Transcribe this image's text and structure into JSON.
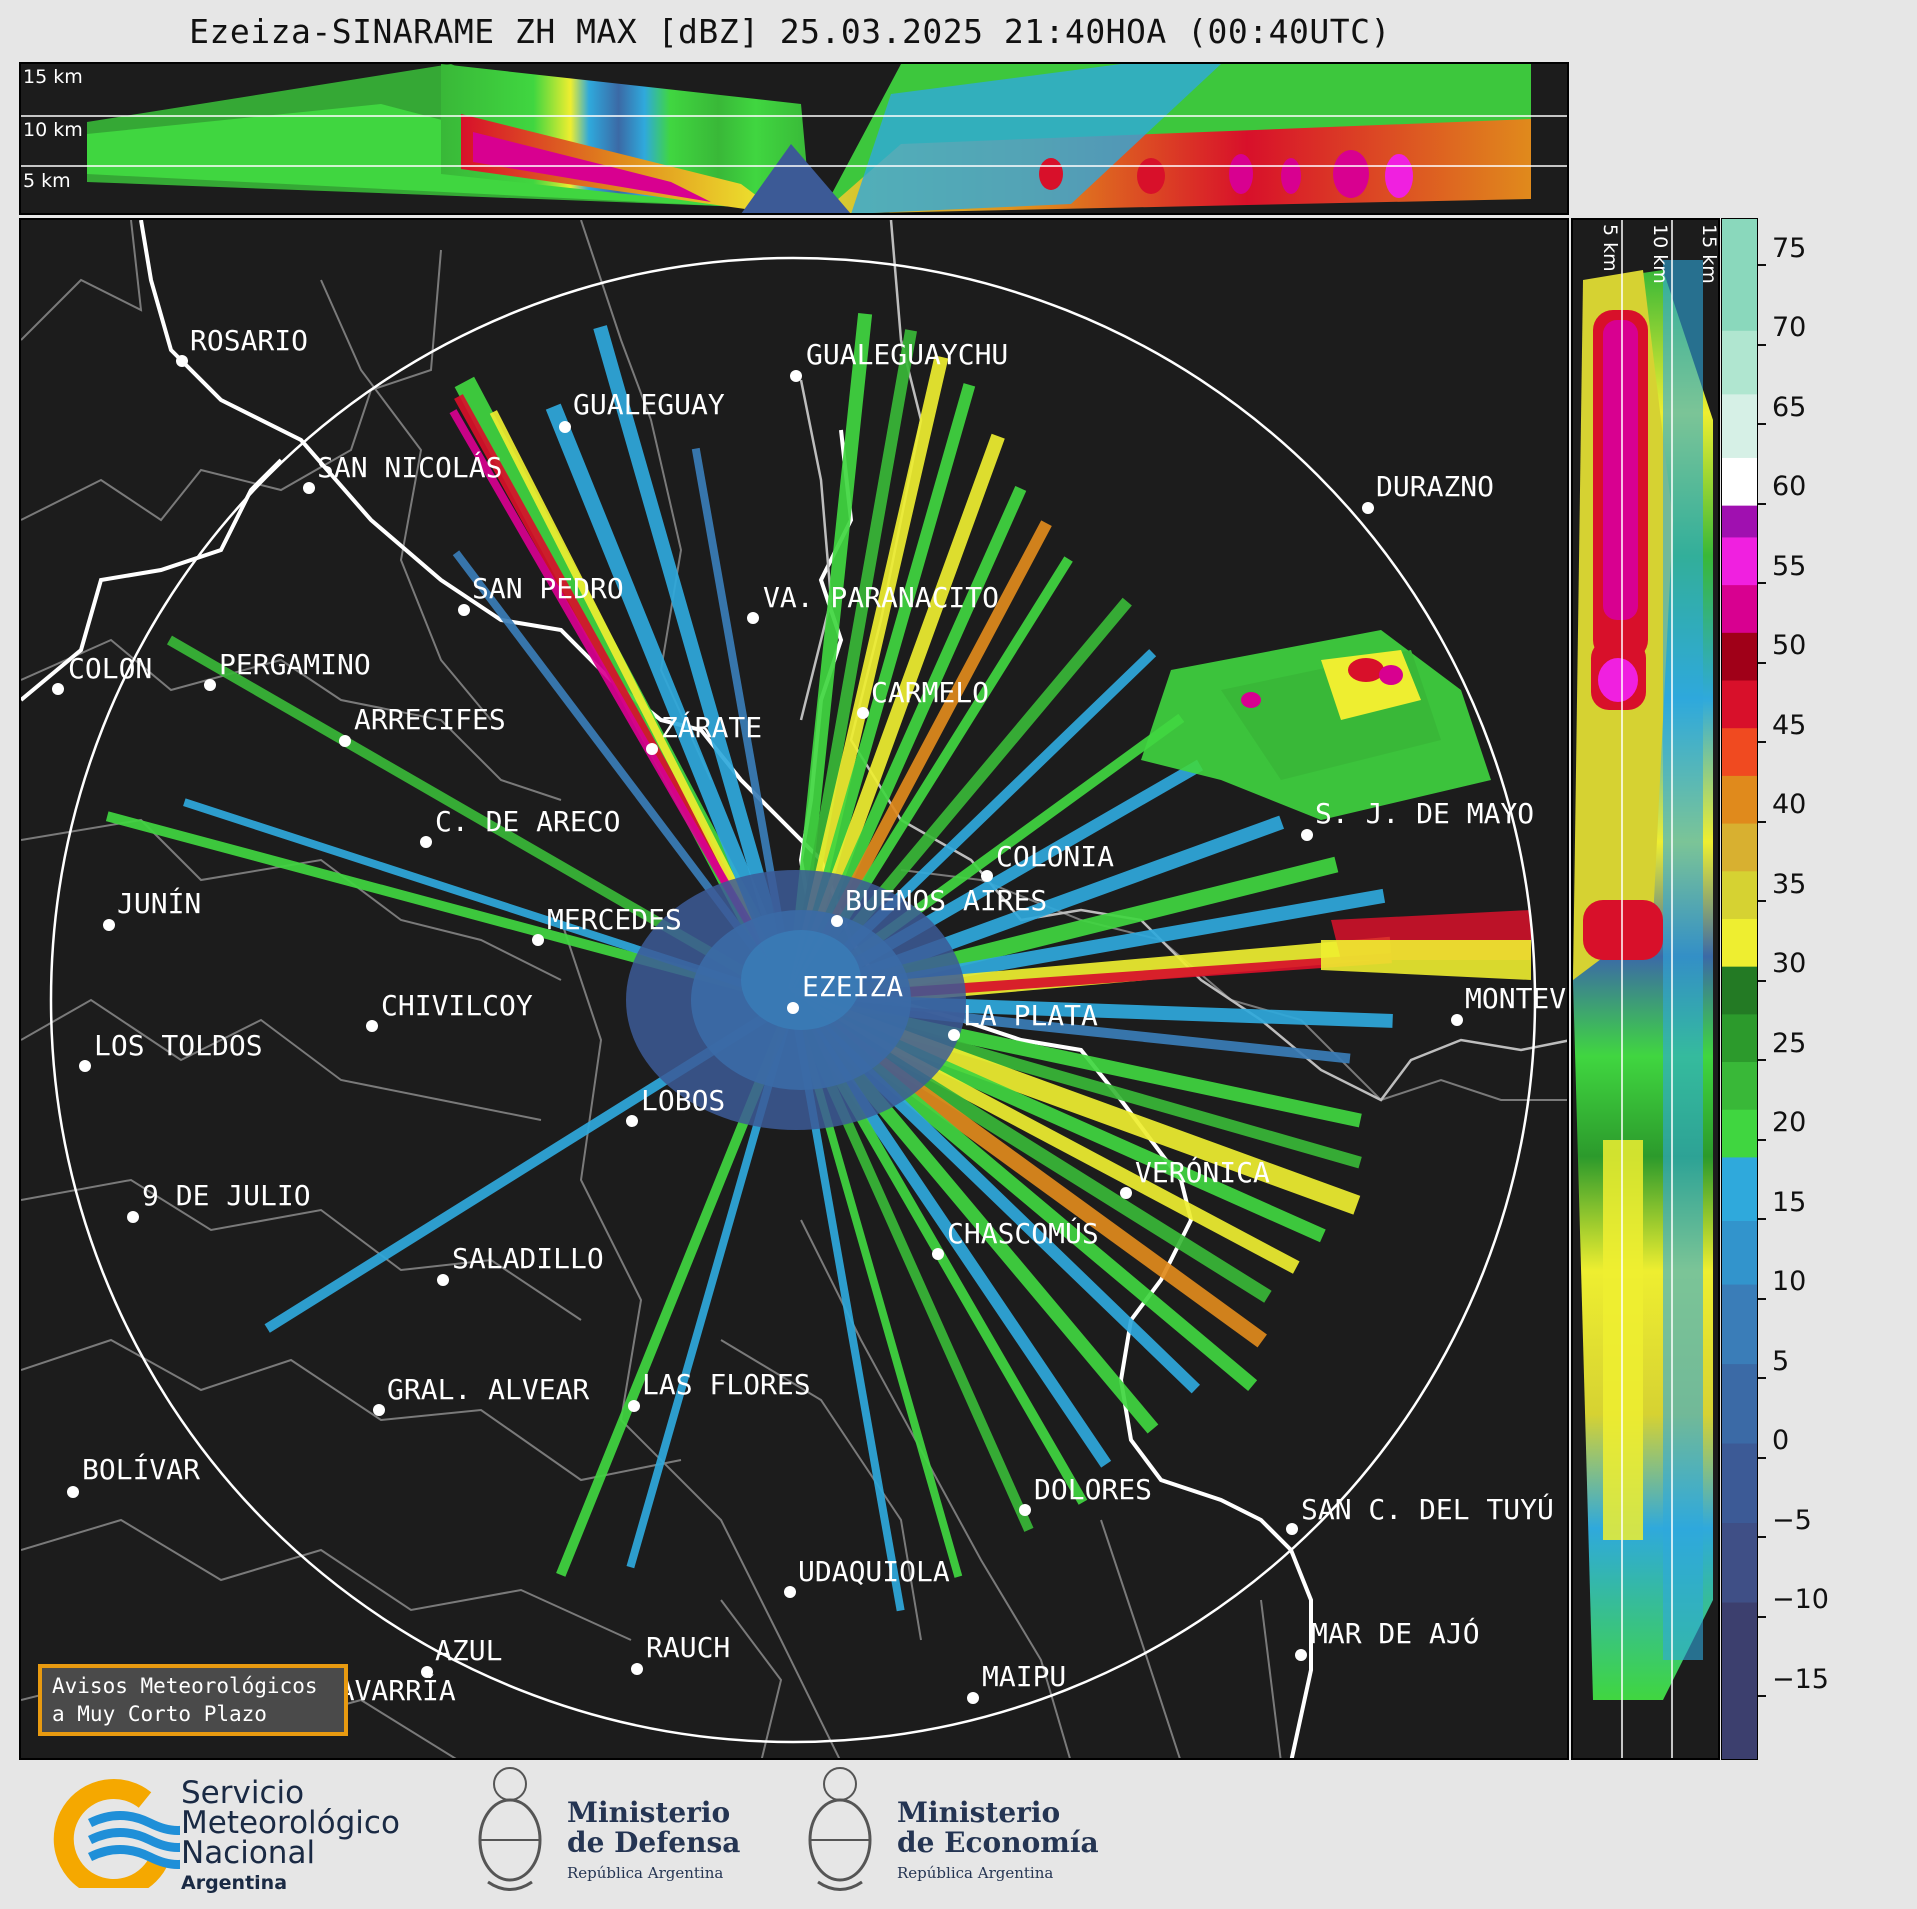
{
  "title": "Ezeiza-SINARAME ZH MAX [dBZ] 25.03.2025 21:40HOA (00:40UTC)",
  "altitude_labels": [
    "15 km",
    "10 km",
    "5 km"
  ],
  "side_altitude_labels": [
    "5 km",
    "10 km",
    "15 km"
  ],
  "colorbar": {
    "ticks": [
      "75",
      "70",
      "65",
      "60",
      "55",
      "50",
      "45",
      "40",
      "35",
      "30",
      "25",
      "20",
      "15",
      "10",
      "5",
      "0",
      "−5",
      "−10",
      "−15"
    ],
    "range": [
      -20,
      77
    ],
    "stops": [
      {
        "from": -20,
        "to": -10,
        "color": "#3c3f6e"
      },
      {
        "from": -10,
        "to": -5,
        "color": "#3f4f86"
      },
      {
        "from": -5,
        "to": 0,
        "color": "#3c5a96"
      },
      {
        "from": 0,
        "to": 5,
        "color": "#3b6aa6"
      },
      {
        "from": 5,
        "to": 10,
        "color": "#3a7db8"
      },
      {
        "from": 10,
        "to": 14,
        "color": "#3294cc"
      },
      {
        "from": 14,
        "to": 18,
        "color": "#2fa9dc"
      },
      {
        "from": 18,
        "to": 21,
        "color": "#40d640"
      },
      {
        "from": 21,
        "to": 24,
        "color": "#39b838"
      },
      {
        "from": 24,
        "to": 27,
        "color": "#2c9a2c"
      },
      {
        "from": 27,
        "to": 30,
        "color": "#237a24"
      },
      {
        "from": 30,
        "to": 33,
        "color": "#eeee30"
      },
      {
        "from": 33,
        "to": 36,
        "color": "#d6d232"
      },
      {
        "from": 36,
        "to": 39,
        "color": "#d8b030"
      },
      {
        "from": 39,
        "to": 42,
        "color": "#e08a1c"
      },
      {
        "from": 42,
        "to": 45,
        "color": "#f04a20"
      },
      {
        "from": 45,
        "to": 48,
        "color": "#d8102a"
      },
      {
        "from": 48,
        "to": 51,
        "color": "#a00018"
      },
      {
        "from": 51,
        "to": 54,
        "color": "#d80090"
      },
      {
        "from": 54,
        "to": 57,
        "color": "#f020e0"
      },
      {
        "from": 57,
        "to": 59,
        "color": "#a010b0"
      },
      {
        "from": 59,
        "to": 62,
        "color": "#ffffff"
      },
      {
        "from": 62,
        "to": 66,
        "color": "#d6f0e6"
      },
      {
        "from": 66,
        "to": 70,
        "color": "#b0e6d0"
      },
      {
        "from": 70,
        "to": 77,
        "color": "#8ad8bc"
      }
    ]
  },
  "cities": [
    {
      "name": "ROSARIO"
    },
    {
      "name": "GUALEGUAYCHU"
    },
    {
      "name": "GUALEGUAY"
    },
    {
      "name": "SAN NICOLÁS"
    },
    {
      "name": "DURAZNO"
    },
    {
      "name": "SAN PEDRO"
    },
    {
      "name": "VA. PARANACITO"
    },
    {
      "name": "COLON"
    },
    {
      "name": "PERGAMINO"
    },
    {
      "name": "CARMELO"
    },
    {
      "name": "ARRECIFES"
    },
    {
      "name": "ZÁRATE"
    },
    {
      "name": "S. J. DE MAYO"
    },
    {
      "name": "C. DE ARECO"
    },
    {
      "name": "COLONIA"
    },
    {
      "name": "BUENOS AIRES"
    },
    {
      "name": "JUNÍN"
    },
    {
      "name": "MERCEDES"
    },
    {
      "name": "EZEIZA"
    },
    {
      "name": "MONTEVIDEO"
    },
    {
      "name": "CHIVILCOY"
    },
    {
      "name": "LA PLATA"
    },
    {
      "name": "LOS TOLDOS"
    },
    {
      "name": "LOBOS"
    },
    {
      "name": "VERÓNICA"
    },
    {
      "name": "9 DE JULIO"
    },
    {
      "name": "CHASCOMÚS"
    },
    {
      "name": "SALADILLO"
    },
    {
      "name": "GRAL. ALVEAR"
    },
    {
      "name": "LAS FLORES"
    },
    {
      "name": "BOLÍVAR"
    },
    {
      "name": "DOLORES"
    },
    {
      "name": "SAN C. DEL TUYÚ"
    },
    {
      "name": "UDAQUIOLA"
    },
    {
      "name": "MAR DE AJÓ"
    },
    {
      "name": "AZUL"
    },
    {
      "name": "RAUCH"
    },
    {
      "name": "OLAVARRÍA"
    },
    {
      "name": "MAIPU"
    }
  ],
  "notice": {
    "line1": "Avisos Meteorológicos",
    "line2": "a Muy Corto Plazo"
  },
  "footer": {
    "smn": {
      "line1": "Servicio",
      "line2": "Meteorológico",
      "line3": "Nacional",
      "line4": "Argentina"
    },
    "defensa": {
      "line1": "Ministerio",
      "line2": "de Defensa",
      "line3": "República Argentina"
    },
    "economia": {
      "line1": "Ministerio",
      "line2": "de Economía",
      "line3": "República Argentina"
    }
  }
}
